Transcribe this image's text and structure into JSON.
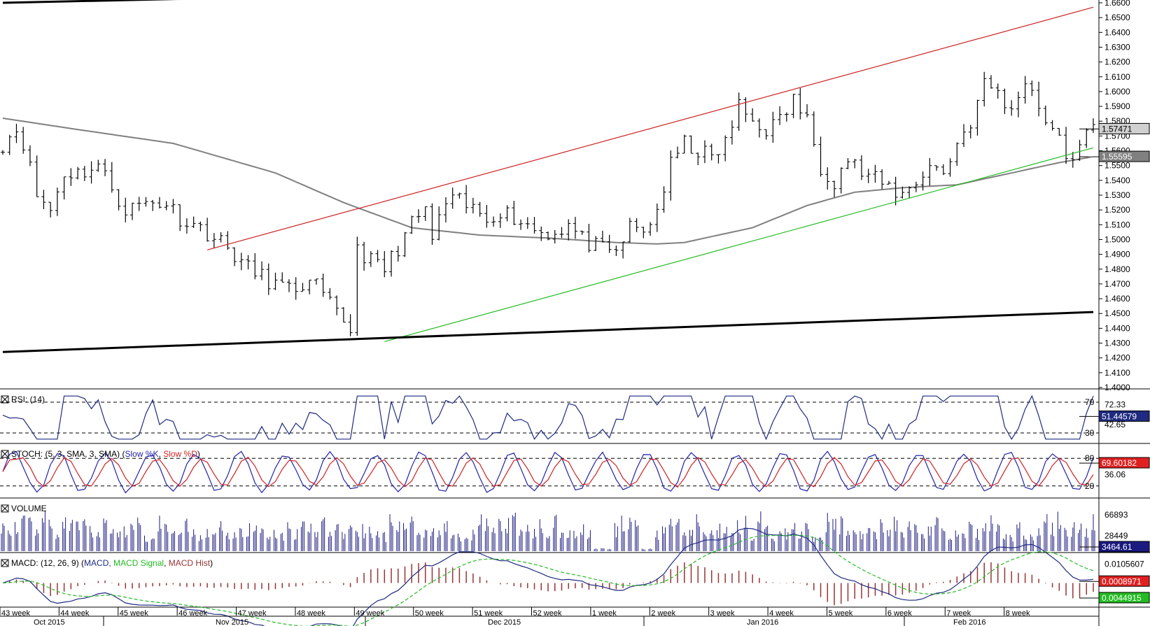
{
  "chart_data": {
    "type": "line",
    "title": "",
    "x_axis": {
      "weeks": [
        "43 week",
        "44 week",
        "45 week",
        "46 week",
        "47 week",
        "48 week",
        "49 week",
        "50 week",
        "51 week",
        "52 week",
        "1 week",
        "2 week",
        "3 week",
        "4 week",
        "5 week",
        "6 week",
        "7 week",
        "8 week"
      ],
      "months": [
        "Oct 2015",
        "Nov 2015",
        "Dec 2015",
        "Jan 2016",
        "Feb 2016"
      ]
    },
    "price": {
      "ylim": [
        1.4,
        1.66
      ],
      "ticks": [
        "1.6600",
        "1.6500",
        "1.6400",
        "1.6300",
        "1.6200",
        "1.6100",
        "1.6000",
        "1.5900",
        "1.5800",
        "1.5700",
        "1.5600",
        "1.5500",
        "1.5400",
        "1.5300",
        "1.5200",
        "1.5100",
        "1.5000",
        "1.4900",
        "1.4800",
        "1.4700",
        "1.4600",
        "1.4500",
        "1.4400",
        "1.4300",
        "1.4200",
        "1.4100",
        "1.4000"
      ],
      "last_price_label": "1.57471",
      "ma_label": "1.55595",
      "close_path": [
        [
          0,
          1.565
        ],
        [
          2,
          1.575
        ],
        [
          3,
          1.566
        ],
        [
          5,
          1.53
        ],
        [
          7,
          1.52
        ],
        [
          9,
          1.545
        ],
        [
          11,
          1.545
        ],
        [
          14,
          1.55
        ],
        [
          16,
          1.535
        ],
        [
          18,
          1.52
        ],
        [
          21,
          1.525
        ],
        [
          24,
          1.525
        ],
        [
          26,
          1.515
        ],
        [
          28,
          1.51
        ],
        [
          30,
          1.505
        ],
        [
          32,
          1.498
        ],
        [
          34,
          1.49
        ],
        [
          36,
          1.48
        ],
        [
          38,
          1.475
        ],
        [
          40,
          1.47
        ],
        [
          42,
          1.465
        ],
        [
          44,
          1.47
        ],
        [
          46,
          1.468
        ],
        [
          48,
          1.455
        ],
        [
          50,
          1.445
        ],
        [
          51,
          1.44
        ],
        [
          52,
          1.495
        ],
        [
          54,
          1.485
        ],
        [
          56,
          1.48
        ],
        [
          58,
          1.495
        ],
        [
          60,
          1.51
        ],
        [
          62,
          1.52
        ],
        [
          63,
          1.5
        ],
        [
          65,
          1.525
        ],
        [
          67,
          1.525
        ],
        [
          69,
          1.52
        ],
        [
          71,
          1.515
        ],
        [
          73,
          1.52
        ],
        [
          75,
          1.515
        ],
        [
          77,
          1.51
        ],
        [
          79,
          1.505
        ],
        [
          81,
          1.505
        ],
        [
          83,
          1.51
        ],
        [
          85,
          1.5
        ],
        [
          87,
          1.495
        ],
        [
          89,
          1.49
        ],
        [
          90,
          1.492
        ],
        [
          92,
          1.508
        ],
        [
          94,
          1.505
        ],
        [
          96,
          1.52
        ],
        [
          98,
          1.55
        ],
        [
          100,
          1.565
        ],
        [
          102,
          1.56
        ],
        [
          104,
          1.555
        ],
        [
          106,
          1.565
        ],
        [
          108,
          1.59
        ],
        [
          110,
          1.58
        ],
        [
          112,
          1.575
        ],
        [
          114,
          1.58
        ],
        [
          116,
          1.595
        ],
        [
          118,
          1.58
        ],
        [
          120,
          1.55
        ],
        [
          122,
          1.54
        ],
        [
          124,
          1.555
        ],
        [
          126,
          1.545
        ],
        [
          128,
          1.54
        ],
        [
          130,
          1.535
        ],
        [
          132,
          1.53
        ],
        [
          134,
          1.54
        ],
        [
          136,
          1.55
        ],
        [
          138,
          1.545
        ],
        [
          140,
          1.565
        ],
        [
          142,
          1.58
        ],
        [
          144,
          1.605
        ],
        [
          146,
          1.6
        ],
        [
          148,
          1.585
        ],
        [
          150,
          1.61
        ],
        [
          152,
          1.59
        ],
        [
          154,
          1.575
        ],
        [
          156,
          1.556
        ],
        [
          158,
          1.56
        ],
        [
          159,
          1.57
        ],
        [
          160,
          1.575
        ]
      ],
      "ma_path": [
        [
          0,
          1.582
        ],
        [
          10,
          1.575
        ],
        [
          25,
          1.565
        ],
        [
          40,
          1.545
        ],
        [
          50,
          1.525
        ],
        [
          60,
          1.508
        ],
        [
          70,
          1.503
        ],
        [
          80,
          1.501
        ],
        [
          90,
          1.498
        ],
        [
          96,
          1.497
        ],
        [
          100,
          1.498
        ],
        [
          110,
          1.508
        ],
        [
          118,
          1.523
        ],
        [
          125,
          1.532
        ],
        [
          132,
          1.535
        ],
        [
          140,
          1.537
        ],
        [
          148,
          1.545
        ],
        [
          155,
          1.552
        ],
        [
          160,
          1.556
        ]
      ],
      "trendlines": [
        {
          "color": "#cc2222",
          "from": [
            30,
            1.493
          ],
          "to": [
            160,
            1.657
          ]
        },
        {
          "color": "#22bb22",
          "from": [
            56,
            1.431
          ],
          "to": [
            160,
            1.562
          ]
        },
        {
          "color": "#000000",
          "from": [
            0,
            1.424
          ],
          "to": [
            160,
            1.451
          ]
        },
        {
          "color": "#000000",
          "from": [
            0,
            1.66
          ],
          "to": [
            50,
            1.665
          ]
        }
      ]
    },
    "rsi": {
      "label": "RSI: (14)",
      "ticks": [
        "70",
        "72.33",
        "42.65",
        "30"
      ],
      "value_label": "51.44579",
      "levels": [
        70,
        30
      ],
      "ylim": [
        20,
        80
      ]
    },
    "stoch": {
      "label": "STOCH: (5, 3, SMA, 3, SMA) (Slow %K, Slow %D)",
      "ticks": [
        "80",
        "36.06",
        "20"
      ],
      "value_label": "69.60182",
      "levels": [
        80,
        20
      ],
      "ylim": [
        0,
        100
      ]
    },
    "volume": {
      "label": "VOLUME",
      "ticks": [
        "66893",
        "28449"
      ],
      "value_label": "3464.61",
      "ylim": [
        0,
        90000
      ]
    },
    "macd": {
      "label": "MACD: (12, 26, 9) (MACD, MACD Signal, MACD Hist)",
      "ticks": [
        "0.0105607"
      ],
      "macd_label": "0.0008971",
      "signal_label": "0.0044915",
      "ylim": [
        -0.012,
        0.014
      ]
    }
  },
  "colors": {
    "candle": "#000000",
    "ma": "#808080",
    "rsi": "#1f2a80",
    "stoch_k": "#2222aa",
    "stoch_d": "#cc2222",
    "volume": "#1a1a80",
    "macd": "#1f2a80",
    "signal": "#22bb22",
    "hist": "#993333"
  }
}
